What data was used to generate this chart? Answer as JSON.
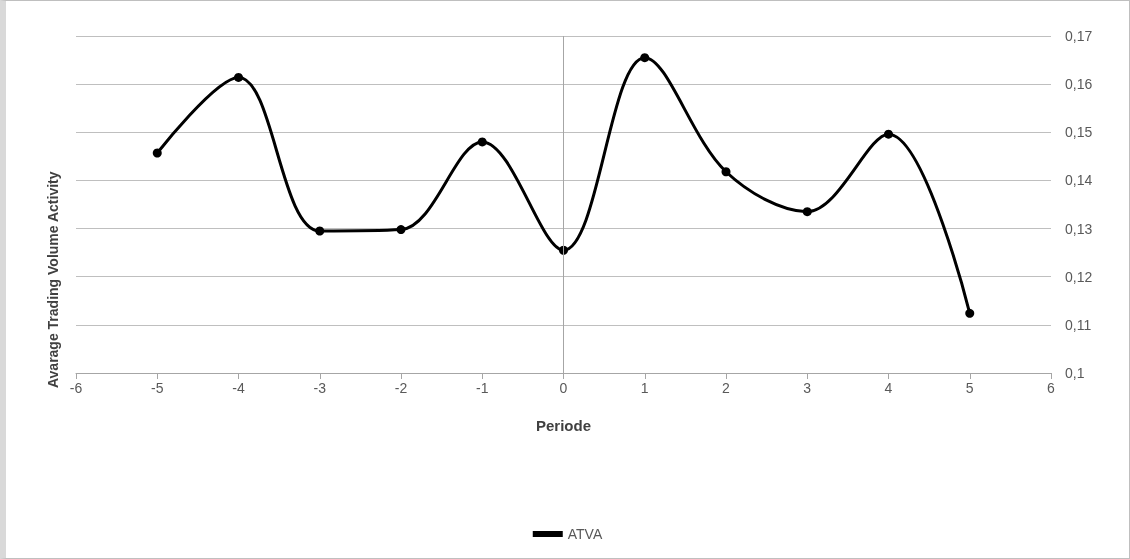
{
  "chart_data": {
    "type": "line",
    "xlabel": "Periode",
    "ylabel": "Avarage Trading Volume Activity",
    "x": [
      -5,
      -4,
      -3,
      -2,
      -1,
      0,
      1,
      2,
      3,
      4,
      5
    ],
    "series": [
      {
        "name": "ATVA",
        "color": "#000000",
        "values": [
          0.1457,
          0.1614,
          0.1295,
          0.1298,
          0.148,
          0.1255,
          0.1655,
          0.1418,
          0.1335,
          0.1496,
          0.1124
        ]
      }
    ],
    "xlim": [
      -6,
      6
    ],
    "xticks": [
      -6,
      -5,
      -4,
      -3,
      -2,
      -1,
      0,
      1,
      2,
      3,
      4,
      5,
      6
    ],
    "ylim": [
      0.1,
      0.17
    ],
    "yticks": [
      {
        "value": 0.1,
        "label": "0,1"
      },
      {
        "value": 0.11,
        "label": "0,11"
      },
      {
        "value": 0.12,
        "label": "0,12"
      },
      {
        "value": 0.13,
        "label": "0,13"
      },
      {
        "value": 0.14,
        "label": "0,14"
      },
      {
        "value": 0.15,
        "label": "0,15"
      },
      {
        "value": 0.16,
        "label": "0,16"
      },
      {
        "value": 0.17,
        "label": "0,17"
      }
    ],
    "ref_lines": [
      {
        "axis": "x",
        "value": 0,
        "color": "#a6a6a6"
      }
    ],
    "grid": "y",
    "legend": "bottom",
    "marker": "circle",
    "line_style": "solid"
  }
}
